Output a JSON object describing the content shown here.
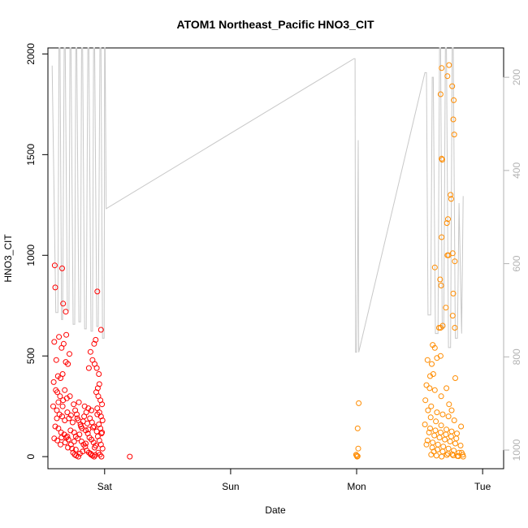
{
  "chart_data": {
    "type": "scatter",
    "title": "ATOM1 Northeast_Pacific HNO3_CIT",
    "xlabel": "Date",
    "ylabel": "HNO3_CIT",
    "x_ticks": [
      {
        "label": "Sat",
        "value": 24
      },
      {
        "label": "Sun",
        "value": 48
      },
      {
        "label": "Mon",
        "value": 72
      },
      {
        "label": "Tue",
        "value": 96
      }
    ],
    "xlim": [
      13.2,
      100.0
    ],
    "ylim": [
      -60,
      2030
    ],
    "y_ticks": [
      0,
      500,
      1000,
      1500,
      2000
    ],
    "right_axis": {
      "label": "",
      "color": "#b3b3b3",
      "reversed": true,
      "range": [
        137,
        1040
      ],
      "ticks": [
        200,
        400,
        600,
        800,
        1000
      ]
    },
    "grid": false,
    "series": [
      {
        "color": "#ff0000",
        "points": [
          [
            14.5,
            950
          ],
          [
            14.6,
            840
          ],
          [
            15.9,
            935
          ],
          [
            16.1,
            760
          ],
          [
            16.6,
            720
          ],
          [
            28.8,
            0
          ],
          [
            14.4,
            570
          ],
          [
            15.3,
            595
          ],
          [
            15.8,
            540
          ],
          [
            16.2,
            560
          ],
          [
            16.7,
            605
          ],
          [
            17.3,
            510
          ],
          [
            14.8,
            480
          ],
          [
            15.1,
            400
          ],
          [
            15.6,
            390
          ],
          [
            16.0,
            410
          ],
          [
            16.6,
            470
          ],
          [
            17.0,
            460
          ],
          [
            14.3,
            370
          ],
          [
            14.7,
            330
          ],
          [
            15.0,
            320
          ],
          [
            15.5,
            300
          ],
          [
            16.1,
            280
          ],
          [
            16.8,
            290
          ],
          [
            14.2,
            250
          ],
          [
            14.9,
            230
          ],
          [
            15.4,
            210
          ],
          [
            15.9,
            200
          ],
          [
            16.4,
            180
          ],
          [
            17.2,
            190
          ],
          [
            14.6,
            150
          ],
          [
            15.2,
            140
          ],
          [
            15.7,
            120
          ],
          [
            16.3,
            110
          ],
          [
            16.9,
            100
          ],
          [
            17.5,
            130
          ],
          [
            14.4,
            90
          ],
          [
            15.0,
            80
          ],
          [
            15.8,
            95
          ],
          [
            16.5,
            70
          ],
          [
            17.1,
            85
          ],
          [
            17.6,
            60
          ],
          [
            17.8,
            40
          ],
          [
            18.0,
            20
          ],
          [
            18.3,
            10
          ],
          [
            18.6,
            5
          ],
          [
            19.0,
            0
          ],
          [
            19.3,
            15
          ],
          [
            18.1,
            260
          ],
          [
            18.4,
            230
          ],
          [
            18.7,
            210
          ],
          [
            19.0,
            180
          ],
          [
            19.4,
            160
          ],
          [
            19.7,
            140
          ],
          [
            18.2,
            120
          ],
          [
            18.5,
            100
          ],
          [
            18.9,
            90
          ],
          [
            19.2,
            110
          ],
          [
            19.6,
            75
          ],
          [
            20.0,
            60
          ],
          [
            20.3,
            50
          ],
          [
            20.6,
            30
          ],
          [
            21.0,
            20
          ],
          [
            21.4,
            10
          ],
          [
            21.7,
            5
          ],
          [
            22.0,
            0
          ],
          [
            20.1,
            200
          ],
          [
            20.5,
            220
          ],
          [
            20.9,
            240
          ],
          [
            21.2,
            190
          ],
          [
            21.6,
            170
          ],
          [
            22.0,
            150
          ],
          [
            20.4,
            130
          ],
          [
            20.8,
            115
          ],
          [
            21.1,
            95
          ],
          [
            21.5,
            85
          ],
          [
            21.9,
            70
          ],
          [
            22.3,
            55
          ],
          [
            21.3,
            520
          ],
          [
            21.7,
            480
          ],
          [
            22.1,
            460
          ],
          [
            22.5,
            440
          ],
          [
            22.9,
            410
          ],
          [
            21.0,
            440
          ],
          [
            22.0,
            560
          ],
          [
            22.3,
            580
          ],
          [
            22.6,
            820
          ],
          [
            23.3,
            630
          ],
          [
            23.0,
            360
          ],
          [
            22.7,
            340
          ],
          [
            22.4,
            320
          ],
          [
            22.8,
            300
          ],
          [
            23.2,
            280
          ],
          [
            23.5,
            260
          ],
          [
            22.6,
            240
          ],
          [
            23.0,
            220
          ],
          [
            23.3,
            200
          ],
          [
            23.6,
            180
          ],
          [
            22.9,
            160
          ],
          [
            23.2,
            140
          ],
          [
            23.5,
            120
          ],
          [
            22.7,
            100
          ],
          [
            23.0,
            80
          ],
          [
            23.3,
            60
          ],
          [
            23.6,
            40
          ],
          [
            22.8,
            20
          ],
          [
            23.1,
            10
          ],
          [
            23.4,
            0
          ],
          [
            15.2,
            270
          ],
          [
            16.0,
            250
          ],
          [
            16.9,
            220
          ],
          [
            17.6,
            205
          ],
          [
            18.8,
            190
          ],
          [
            19.9,
            175
          ],
          [
            20.7,
            165
          ],
          [
            21.8,
            145
          ],
          [
            22.5,
            125
          ],
          [
            15.6,
            60
          ],
          [
            17.0,
            45
          ],
          [
            18.5,
            35
          ],
          [
            19.8,
            25
          ],
          [
            21.3,
            15
          ],
          [
            22.2,
            8
          ],
          [
            16.4,
            330
          ],
          [
            17.4,
            300
          ],
          [
            19.1,
            270
          ],
          [
            20.2,
            250
          ],
          [
            21.5,
            230
          ],
          [
            22.6,
            210
          ],
          [
            14.9,
            190
          ],
          [
            17.9,
            170
          ],
          [
            19.5,
            150
          ],
          [
            20.9,
            135
          ],
          [
            23.4,
            115
          ],
          [
            16.7,
            95
          ],
          [
            18.2,
            75
          ],
          [
            20.4,
            65
          ],
          [
            22.1,
            45
          ]
        ]
      },
      {
        "color": "#ff8c00",
        "points": [
          [
            72.1,
            0
          ],
          [
            72.0,
            5
          ],
          [
            71.9,
            10
          ],
          [
            72.2,
            2
          ],
          [
            72.3,
            40
          ],
          [
            72.2,
            140
          ],
          [
            72.4,
            265
          ],
          [
            88.2,
            1930
          ],
          [
            89.6,
            1945
          ],
          [
            89.3,
            1890
          ],
          [
            90.2,
            1840
          ],
          [
            90.5,
            1770
          ],
          [
            88.0,
            1800
          ],
          [
            90.4,
            1675
          ],
          [
            90.6,
            1600
          ],
          [
            88.2,
            1480
          ],
          [
            88.3,
            1475
          ],
          [
            89.2,
            1160
          ],
          [
            89.9,
            1300
          ],
          [
            90.0,
            1280
          ],
          [
            89.4,
            1180
          ],
          [
            90.3,
            1010
          ],
          [
            88.2,
            1090
          ],
          [
            89.3,
            1000
          ],
          [
            89.5,
            1000
          ],
          [
            90.7,
            970
          ],
          [
            86.9,
            940
          ],
          [
            87.9,
            880
          ],
          [
            88.1,
            850
          ],
          [
            89.0,
            740
          ],
          [
            90.4,
            810
          ],
          [
            87.7,
            640
          ],
          [
            88.4,
            650
          ],
          [
            88.0,
            640
          ],
          [
            90.3,
            700
          ],
          [
            90.7,
            640
          ],
          [
            86.5,
            555
          ],
          [
            86.9,
            540
          ],
          [
            85.5,
            480
          ],
          [
            86.3,
            460
          ],
          [
            87.3,
            490
          ],
          [
            88.0,
            500
          ],
          [
            86.0,
            400
          ],
          [
            86.6,
            410
          ],
          [
            85.3,
            355
          ],
          [
            85.9,
            340
          ],
          [
            86.9,
            330
          ],
          [
            88.1,
            300
          ],
          [
            89.1,
            340
          ],
          [
            89.6,
            260
          ],
          [
            90.1,
            230
          ],
          [
            85.1,
            280
          ],
          [
            86.2,
            250
          ],
          [
            87.3,
            220
          ],
          [
            88.4,
            210
          ],
          [
            89.5,
            200
          ],
          [
            90.6,
            180
          ],
          [
            85.0,
            160
          ],
          [
            86.0,
            140
          ],
          [
            87.0,
            130
          ],
          [
            88.0,
            120
          ],
          [
            89.0,
            110
          ],
          [
            90.0,
            100
          ],
          [
            91.0,
            90
          ],
          [
            85.5,
            80
          ],
          [
            86.5,
            70
          ],
          [
            87.5,
            60
          ],
          [
            88.5,
            50
          ],
          [
            89.5,
            40
          ],
          [
            90.5,
            30
          ],
          [
            91.5,
            20
          ],
          [
            86.2,
            10
          ],
          [
            87.2,
            5
          ],
          [
            88.2,
            0
          ],
          [
            89.2,
            8
          ],
          [
            90.2,
            12
          ],
          [
            91.2,
            3
          ],
          [
            85.8,
            120
          ],
          [
            86.8,
            105
          ],
          [
            87.8,
            95
          ],
          [
            88.8,
            85
          ],
          [
            89.8,
            75
          ],
          [
            90.8,
            65
          ],
          [
            91.8,
            55
          ],
          [
            86.4,
            45
          ],
          [
            87.4,
            35
          ],
          [
            88.4,
            25
          ],
          [
            89.4,
            15
          ],
          [
            90.4,
            6
          ],
          [
            91.4,
            2
          ],
          [
            86.1,
            195
          ],
          [
            87.1,
            175
          ],
          [
            88.1,
            155
          ],
          [
            89.1,
            135
          ],
          [
            90.1,
            125
          ],
          [
            91.1,
            115
          ],
          [
            92.0,
            20
          ],
          [
            92.3,
            0
          ],
          [
            85.6,
            230
          ],
          [
            90.8,
            390
          ],
          [
            91.9,
            150
          ],
          [
            92.2,
            10
          ],
          [
            85.3,
            60
          ],
          [
            86.7,
            25
          ]
        ]
      }
    ],
    "right_line": {
      "color": "#c8c8c8",
      "points": [
        [
          14.0,
          175
        ],
        [
          14.7,
          705
        ],
        [
          15.1,
          705
        ],
        [
          15.3,
          100
        ],
        [
          15.5,
          100
        ],
        [
          15.8,
          720
        ],
        [
          16.0,
          720
        ],
        [
          16.3,
          100
        ],
        [
          16.5,
          100
        ],
        [
          16.9,
          700
        ],
        [
          17.2,
          700
        ],
        [
          17.4,
          100
        ],
        [
          17.6,
          100
        ],
        [
          18.0,
          730
        ],
        [
          18.3,
          730
        ],
        [
          18.5,
          100
        ],
        [
          18.7,
          100
        ],
        [
          19.1,
          725
        ],
        [
          19.4,
          725
        ],
        [
          19.6,
          100
        ],
        [
          19.8,
          100
        ],
        [
          20.2,
          740
        ],
        [
          20.5,
          740
        ],
        [
          20.8,
          100
        ],
        [
          21.0,
          100
        ],
        [
          21.4,
          745
        ],
        [
          21.7,
          745
        ],
        [
          21.9,
          100
        ],
        [
          22.1,
          100
        ],
        [
          22.5,
          735
        ],
        [
          22.8,
          735
        ],
        [
          23.1,
          100
        ],
        [
          23.3,
          100
        ],
        [
          23.6,
          760
        ],
        [
          23.9,
          760
        ],
        [
          24.0,
          100
        ],
        [
          24.1,
          100
        ],
        [
          24.3,
          482
        ],
        [
          71.5,
          160
        ],
        [
          71.7,
          160
        ],
        [
          71.8,
          790
        ],
        [
          72.0,
          790
        ],
        [
          72.2,
          580
        ],
        [
          72.3,
          335
        ],
        [
          72.4,
          790
        ],
        [
          85.0,
          190
        ],
        [
          85.3,
          190
        ],
        [
          85.6,
          710
        ],
        [
          86.1,
          710
        ],
        [
          86.4,
          200
        ],
        [
          86.6,
          200
        ],
        [
          87.0,
          750
        ],
        [
          87.5,
          750
        ],
        [
          87.8,
          100
        ],
        [
          88.0,
          100
        ],
        [
          88.3,
          740
        ],
        [
          88.6,
          740
        ],
        [
          88.9,
          100
        ],
        [
          89.1,
          100
        ],
        [
          89.5,
          780
        ],
        [
          89.9,
          780
        ],
        [
          90.2,
          100
        ],
        [
          90.4,
          100
        ],
        [
          90.8,
          760
        ],
        [
          91.2,
          760
        ],
        [
          91.5,
          470
        ],
        [
          92.0,
          750
        ],
        [
          92.3,
          455
        ]
      ]
    }
  }
}
